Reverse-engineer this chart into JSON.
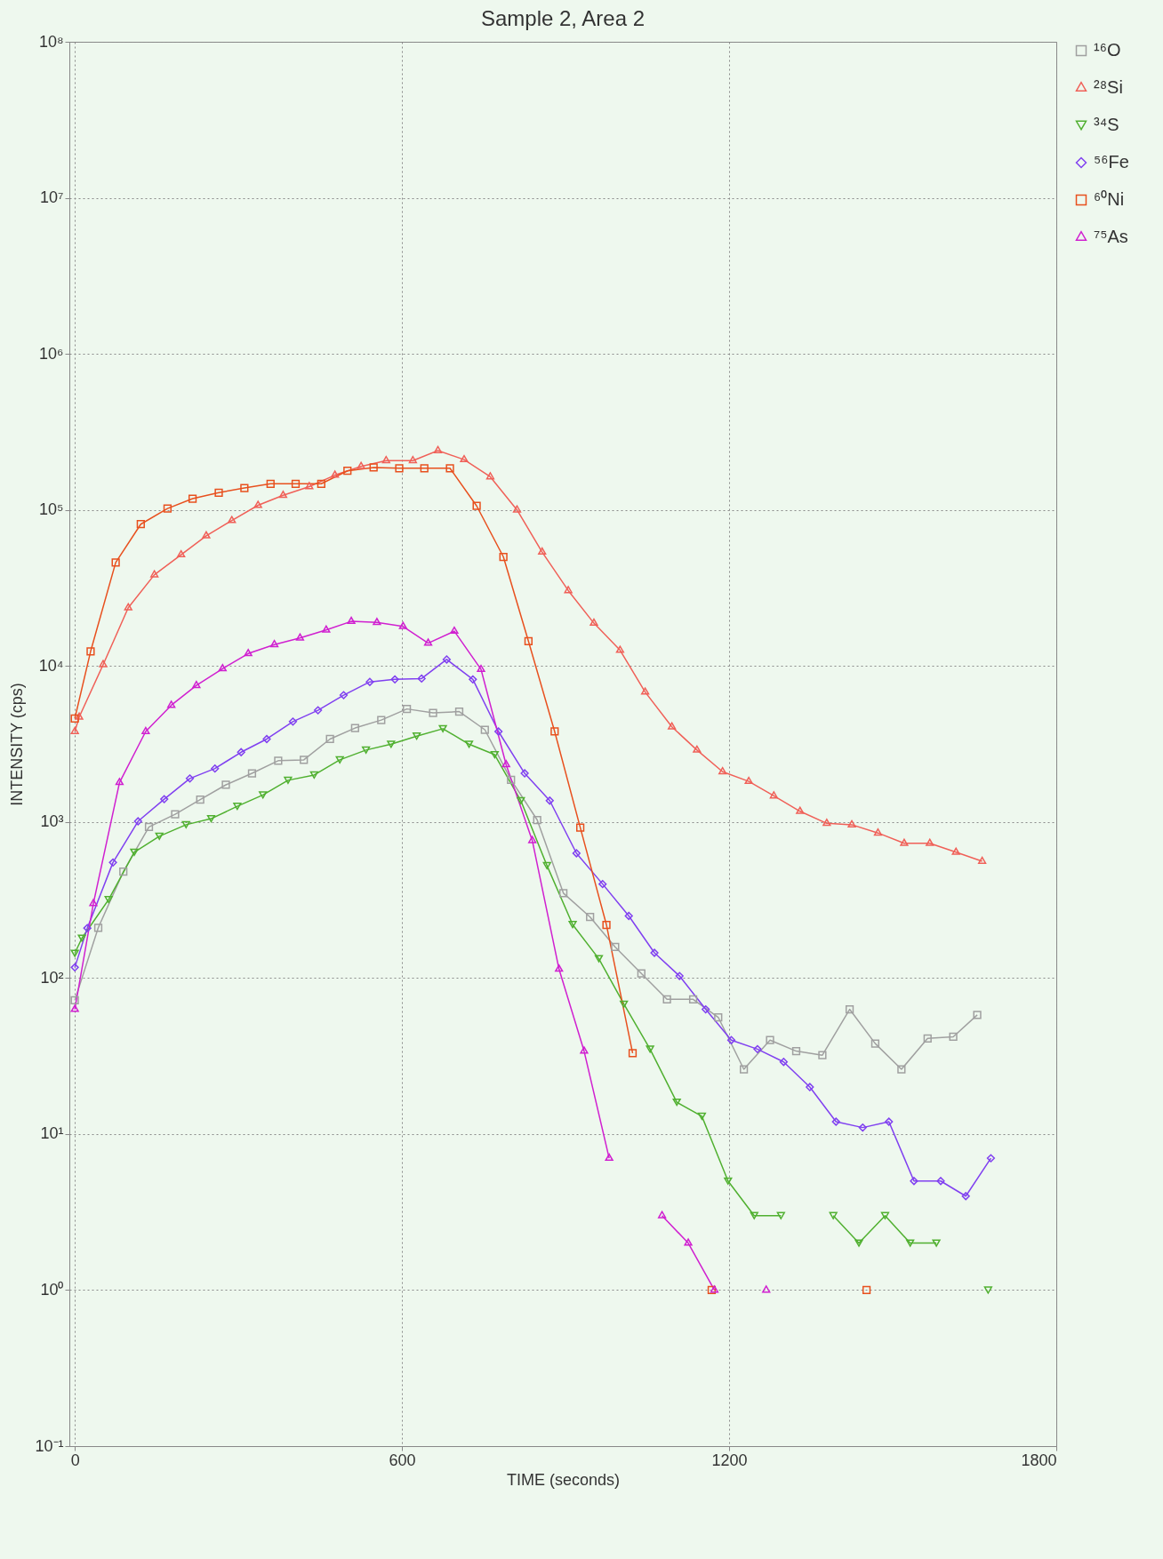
{
  "chart_data": {
    "type": "line",
    "title": "Sample 2, Area 2",
    "xlabel": "TIME (seconds)",
    "ylabel": "INTENSITY (cps)",
    "log": "y",
    "grid": true,
    "legend": "right",
    "xlim": [
      -10,
      1800
    ],
    "xticks": [
      0,
      600,
      1200,
      1800
    ],
    "ylim": [
      0.1,
      100000000
    ],
    "yticks": [
      {
        "value": 0.1,
        "label": "10⁻¹"
      },
      {
        "value": 1,
        "label": "10⁰"
      },
      {
        "value": 10,
        "label": "10¹"
      },
      {
        "value": 100,
        "label": "10²"
      },
      {
        "value": 1000,
        "label": "10³"
      },
      {
        "value": 10000,
        "label": "10⁴"
      },
      {
        "value": 100000,
        "label": "10⁵"
      },
      {
        "value": 1000000,
        "label": "10⁶"
      },
      {
        "value": 10000000,
        "label": "10⁷"
      },
      {
        "value": 100000000,
        "label": "10⁸"
      }
    ],
    "series": [
      {
        "name": "¹⁶O",
        "color": "#a0a0a0",
        "marker": "square",
        "x": [
          0,
          43,
          89,
          136,
          184,
          230,
          277,
          325,
          373,
          420,
          468,
          514,
          562,
          609,
          657,
          705,
          752,
          800,
          848,
          896,
          945,
          991,
          1039,
          1086,
          1134,
          1180,
          1227,
          1275,
          1323,
          1371,
          1421,
          1468,
          1516,
          1564,
          1611,
          1655
        ],
        "values": [
          72,
          210,
          480,
          930,
          1120,
          1390,
          1730,
          2050,
          2470,
          2500,
          3400,
          4000,
          4500,
          5300,
          5000,
          5100,
          3900,
          1860,
          1030,
          350,
          246,
          158,
          107,
          73,
          73,
          56,
          26,
          40,
          34,
          32,
          63,
          38,
          26,
          41,
          42,
          58
        ]
      },
      {
        "name": "²⁸Si",
        "color": "#f06058",
        "marker": "triangle",
        "x": [
          0,
          8,
          52,
          98,
          146,
          195,
          241,
          288,
          336,
          382,
          430,
          477,
          525,
          571,
          620,
          666,
          714,
          762,
          811,
          857,
          905,
          952,
          1000,
          1046,
          1095,
          1141,
          1188,
          1236,
          1282,
          1330,
          1379,
          1425,
          1473,
          1521,
          1568,
          1616,
          1664
        ],
        "values": [
          3800,
          4700,
          10200,
          23600,
          38400,
          51600,
          68200,
          85500,
          107000,
          124000,
          141000,
          167000,
          190000,
          207000,
          207000,
          240000,
          210000,
          163000,
          100000,
          53700,
          30400,
          18800,
          12600,
          6800,
          4070,
          2890,
          2100,
          1820,
          1470,
          1170,
          980,
          960,
          850,
          730,
          730,
          640,
          560
        ]
      },
      {
        "name": "³⁴S",
        "color": "#50b030",
        "marker": "triangle-down",
        "x": [
          0,
          13,
          62,
          109,
          155,
          204,
          250,
          298,
          345,
          391,
          439,
          486,
          534,
          580,
          627,
          675,
          723,
          770,
          818,
          866,
          913,
          961,
          1007,
          1055,
          1104,
          1150,
          1198,
          1246,
          1295,
          1343,
          1391,
          1438,
          1486,
          1532,
          1580,
          1628,
          1675
        ],
        "values": [
          144,
          180,
          318,
          640,
          810,
          960,
          1050,
          1260,
          1490,
          1850,
          2000,
          2500,
          2890,
          3150,
          3550,
          3960,
          3150,
          2700,
          1370,
          525,
          220,
          133,
          68,
          35,
          16,
          13,
          5,
          3,
          3,
          null,
          3,
          2,
          3,
          2,
          2,
          null,
          1
        ]
      },
      {
        "name": "⁵⁶Fe",
        "color": "#8040f0",
        "marker": "diamond",
        "x": [
          0,
          23,
          70,
          116,
          164,
          211,
          257,
          305,
          352,
          400,
          446,
          493,
          541,
          587,
          636,
          682,
          730,
          777,
          825,
          871,
          920,
          968,
          1016,
          1063,
          1109,
          1157,
          1204,
          1252,
          1300,
          1348,
          1396,
          1445,
          1493,
          1539,
          1588,
          1634,
          1680
        ],
        "values": [
          117,
          209,
          550,
          1010,
          1400,
          1900,
          2200,
          2800,
          3400,
          4400,
          5200,
          6500,
          7900,
          8200,
          8300,
          11000,
          8200,
          3800,
          2050,
          1370,
          630,
          400,
          250,
          145,
          103,
          63,
          40,
          35,
          29,
          20,
          12,
          11,
          12,
          5,
          5,
          4,
          7
        ]
      },
      {
        "name": "⁶⁰Ni",
        "color": "#e8501e",
        "marker": "square",
        "x": [
          0,
          29,
          75,
          121,
          170,
          216,
          264,
          311,
          359,
          405,
          452,
          500,
          548,
          595,
          641,
          688,
          737,
          786,
          832,
          880,
          927,
          975,
          1023,
          1095,
          1168,
          1300,
          1452
        ],
        "values": [
          4600,
          12400,
          46000,
          81000,
          102000,
          118000,
          129000,
          138000,
          147000,
          147000,
          147000,
          178000,
          187000,
          185000,
          185000,
          185000,
          106000,
          50000,
          14400,
          3800,
          920,
          219,
          33,
          null,
          1,
          null,
          1
        ]
      },
      {
        "name": "⁷⁵As",
        "color": "#d020d0",
        "marker": "triangle",
        "x": [
          0,
          34,
          82,
          130,
          177,
          223,
          271,
          318,
          366,
          413,
          461,
          507,
          554,
          602,
          648,
          696,
          745,
          791,
          839,
          888,
          934,
          980,
          1030,
          1077,
          1125,
          1173,
          1220,
          1268
        ],
        "values": [
          63,
          300,
          1790,
          3800,
          5600,
          7500,
          9600,
          12000,
          13700,
          15100,
          17000,
          19300,
          19000,
          17900,
          14000,
          16700,
          9500,
          2330,
          760,
          114,
          34,
          7,
          null,
          3,
          2,
          1,
          null,
          1
        ]
      }
    ]
  }
}
